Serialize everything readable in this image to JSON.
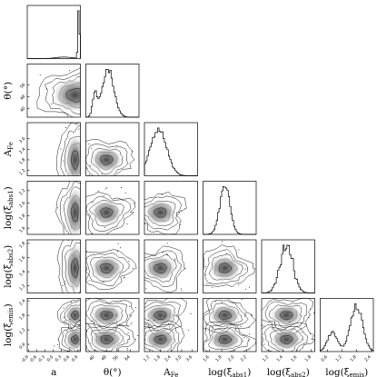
{
  "chart_data": {
    "type": "corner",
    "parameters": [
      {
        "key": "a",
        "label": "a",
        "sub": "",
        "ticks": [
          "-0.9",
          "-0.6",
          "-0.3",
          "0.0",
          "0.3",
          "0.6",
          "0.9"
        ],
        "range": [
          -0.95,
          0.99
        ]
      },
      {
        "key": "theta",
        "label": "θ(°)",
        "sub": "",
        "ticks": [
          "40",
          "48",
          "56",
          "64"
        ],
        "range": [
          34,
          70
        ]
      },
      {
        "key": "AFe",
        "label": "A",
        "sub": "Fe",
        "ticks": [
          "1.2",
          "1.8",
          "2.4",
          "3.0",
          "3.6"
        ],
        "range": [
          0.9,
          3.9
        ]
      },
      {
        "key": "xi_abs1",
        "label": "log(ξ",
        "sub": "abs1",
        "suffix": ")",
        "ticks": [
          "1.6",
          "1.8",
          "2.0",
          "2.2"
        ],
        "range": [
          1.5,
          2.35
        ]
      },
      {
        "key": "xi_abs2",
        "label": "log(ξ",
        "sub": "abs2",
        "suffix": ")",
        "ticks": [
          "1.2",
          "1.4",
          "1.6",
          "1.8"
        ],
        "range": [
          1.1,
          1.85
        ]
      },
      {
        "key": "xi_emis",
        "label": "log(ξ",
        "sub": "emis",
        "suffix": ")",
        "ticks": [
          "0.6",
          "1.2",
          "1.8",
          "2.4"
        ],
        "range": [
          0.3,
          2.5
        ]
      }
    ],
    "y_ticks": {
      "theta": [
        "40",
        "48",
        "56"
      ],
      "AFe": [
        "1.2",
        "1.8",
        "2.4",
        "3.0"
      ],
      "xi_abs1": [
        "1.6",
        "1.8",
        "2.0",
        "2.2"
      ],
      "xi_abs2": [
        "1.2",
        "1.4",
        "1.6",
        "1.8"
      ],
      "xi_emis": [
        "0.6",
        "1.2",
        "1.8",
        "2.4"
      ]
    },
    "marginal_peaks": {
      "a": 0.93,
      "theta": 49,
      "AFe": 1.7,
      "xi_abs1": 1.85,
      "xi_abs2": 1.45,
      "xi_emis": 1.8
    },
    "density_centers": {
      "theta_vs_a": [
        [
          0.93,
          49
        ]
      ],
      "AFe_vs_a": [
        [
          0.93,
          1.8
        ]
      ],
      "AFe_vs_theta": [
        [
          48,
          1.8
        ]
      ],
      "xi_abs1_vs_a": [
        [
          0.93,
          1.85
        ]
      ],
      "xi_abs1_vs_theta": [
        [
          48,
          1.85
        ]
      ],
      "xi_abs1_vs_AFe": [
        [
          1.8,
          1.85
        ]
      ],
      "xi_abs2_vs_a": [
        [
          0.93,
          1.45
        ]
      ],
      "xi_abs2_vs_theta": [
        [
          48,
          1.45
        ]
      ],
      "xi_abs2_vs_AFe": [
        [
          1.8,
          1.45
        ]
      ],
      "xi_abs2_vs_xi_abs1": [
        [
          1.85,
          1.45
        ]
      ],
      "xi_emis_vs_a": [
        [
          0.93,
          1.8
        ],
        [
          0.93,
          0.8
        ]
      ],
      "xi_emis_vs_theta": [
        [
          48,
          1.8
        ],
        [
          48,
          0.8
        ]
      ],
      "xi_emis_vs_AFe": [
        [
          1.8,
          1.8
        ],
        [
          1.8,
          0.8
        ]
      ],
      "xi_emis_vs_xi_abs1": [
        [
          1.85,
          1.8
        ],
        [
          1.85,
          0.8
        ]
      ],
      "xi_emis_vs_xi_abs2": [
        [
          1.45,
          1.8
        ],
        [
          1.45,
          0.8
        ]
      ]
    },
    "grid": false,
    "legend": "none"
  }
}
